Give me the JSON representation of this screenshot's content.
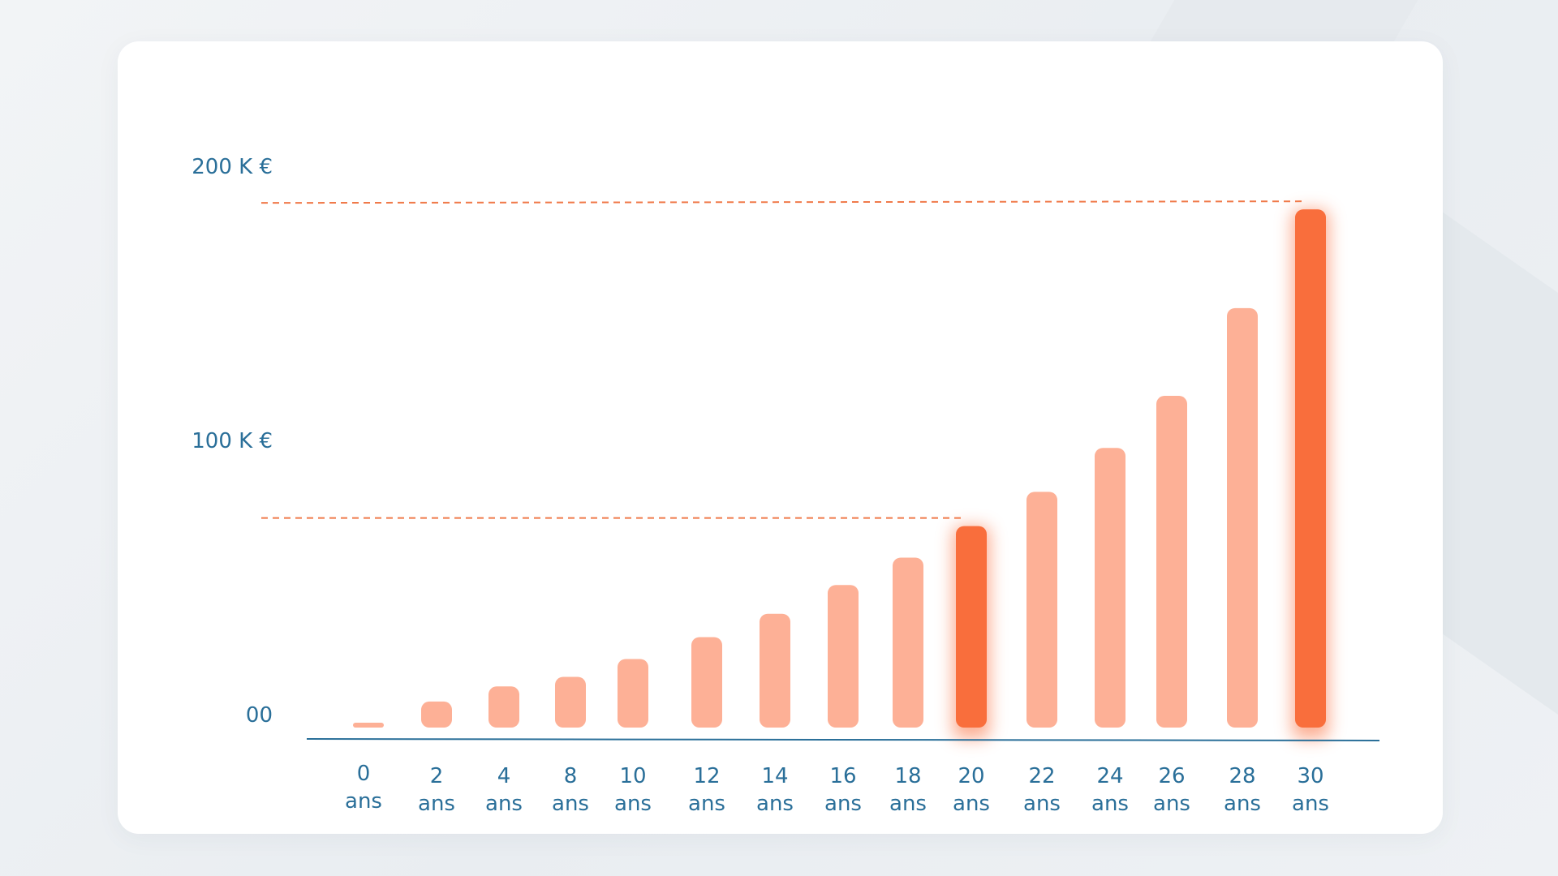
{
  "chart_data": {
    "type": "bar",
    "categories": [
      "0 ans",
      "2 ans",
      "4 ans",
      "8 ans",
      "10 ans",
      "12 ans",
      "14 ans",
      "16 ans",
      "18 ans",
      "20 ans",
      "22 ans",
      "24 ans",
      "26 ans",
      "28 ans",
      "30 ans"
    ],
    "category_labels": [
      [
        "0",
        "ans"
      ],
      [
        "2",
        "ans"
      ],
      [
        "4",
        "ans"
      ],
      [
        "8",
        "ans"
      ],
      [
        "10",
        "ans"
      ],
      [
        "12",
        "ans"
      ],
      [
        "14",
        "ans"
      ],
      [
        "16",
        "ans"
      ],
      [
        "18",
        "ans"
      ],
      [
        "20",
        "ans"
      ],
      [
        "22",
        "ans"
      ],
      [
        "24",
        "ans"
      ],
      [
        "26",
        "ans"
      ],
      [
        "28",
        "ans"
      ],
      [
        "30",
        "ans"
      ]
    ],
    "values": [
      1.5,
      9.5,
      15,
      18.5,
      25,
      33,
      41.5,
      52,
      62,
      73.5,
      86,
      102,
      121,
      153,
      189
    ],
    "highlighted": [
      "20 ans",
      "30 ans"
    ],
    "reference_lines": [
      73.5,
      189
    ],
    "y_ticks": [
      {
        "value": 0,
        "label": "00"
      },
      {
        "value": 100,
        "label": "100 K €"
      },
      {
        "value": 200,
        "label": "200 K €"
      }
    ],
    "ylim": [
      0,
      200
    ],
    "grid": false,
    "title": "",
    "xlabel": "",
    "ylabel": "",
    "colors": {
      "bar": "#fdb096",
      "highlight": "#f96e3c",
      "axis": "#2a6f99",
      "reference_line": "#f07a4a",
      "tick_text": "#2a6f99"
    }
  }
}
